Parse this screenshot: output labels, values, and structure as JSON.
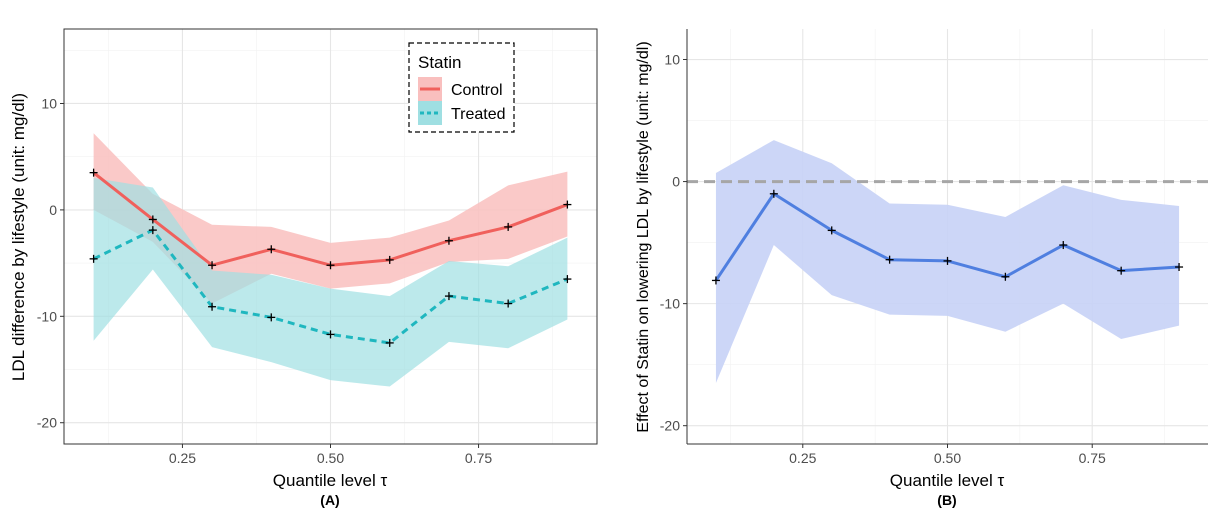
{
  "colors": {
    "control": "#F0605C",
    "control_band": "#F9BFBE",
    "treated": "#1FB7BF",
    "treated_band": "#9FDFE2",
    "effect": "#4F7FE0",
    "effect_band": "#C6D2F6",
    "zero_line": "#A6A6A6",
    "grid": "#E6E6E6",
    "axis": "#333333"
  },
  "chart_data": [
    {
      "panel_label": "(A)",
      "type": "line",
      "xlabel": "Quantile level τ",
      "ylabel": "LDL difference by lifestyle (unit:  mg/dl)",
      "xlim": [
        0.05,
        0.95
      ],
      "ylim": [
        -22,
        17
      ],
      "xticks": [
        0.25,
        0.5,
        0.75
      ],
      "xtick_labels": [
        "0.25",
        "0.50",
        "0.75"
      ],
      "yticks": [
        -20,
        -10,
        0,
        10
      ],
      "ytick_labels": [
        "-20",
        "-10",
        "0",
        "10"
      ],
      "grid": true,
      "x": [
        0.1,
        0.2,
        0.3,
        0.4,
        0.5,
        0.6,
        0.7,
        0.8,
        0.9
      ],
      "legend": {
        "title": "Statin",
        "placement": "top-right"
      },
      "series": [
        {
          "name": "Control",
          "style": "solid",
          "values": [
            3.5,
            -0.9,
            -5.2,
            -3.7,
            -5.2,
            -4.7,
            -2.9,
            -1.6,
            0.5
          ],
          "lower": [
            0.0,
            -3.0,
            -8.8,
            -6.0,
            -7.4,
            -6.9,
            -4.9,
            -4.6,
            -2.5
          ],
          "upper": [
            7.2,
            1.5,
            -1.4,
            -1.6,
            -3.1,
            -2.6,
            -1.0,
            2.3,
            3.6
          ]
        },
        {
          "name": "Treated",
          "style": "dashed",
          "values": [
            -4.6,
            -1.9,
            -9.1,
            -10.1,
            -11.7,
            -12.5,
            -8.1,
            -8.8,
            -6.5
          ],
          "lower": [
            -12.3,
            -5.6,
            -12.9,
            -14.3,
            -16.0,
            -16.6,
            -12.4,
            -13.0,
            -10.3
          ],
          "upper": [
            3.0,
            2.1,
            -5.7,
            -6.1,
            -7.4,
            -8.1,
            -4.8,
            -5.3,
            -2.6
          ]
        }
      ]
    },
    {
      "panel_label": "(B)",
      "type": "line",
      "xlabel": "Quantile level τ",
      "ylabel": "Effect of Statin on lowering LDL by lifestyle (unit: mg/dl)",
      "xlim": [
        0.05,
        0.95
      ],
      "ylim": [
        -21.5,
        12.5
      ],
      "xticks": [
        0.25,
        0.5,
        0.75
      ],
      "xtick_labels": [
        "0.25",
        "0.50",
        "0.75"
      ],
      "yticks": [
        -20,
        -10,
        0,
        10
      ],
      "ytick_labels": [
        "-20",
        "-10",
        "0",
        "10"
      ],
      "grid": true,
      "reference_line_y": 0,
      "x": [
        0.1,
        0.2,
        0.3,
        0.4,
        0.5,
        0.6,
        0.7,
        0.8,
        0.9
      ],
      "series": [
        {
          "values": [
            -8.1,
            -1.0,
            -4.0,
            -6.4,
            -6.5,
            -7.8,
            -5.2,
            -7.3,
            -7.0
          ],
          "lower": [
            -16.5,
            -5.2,
            -9.3,
            -10.9,
            -11.0,
            -12.3,
            -10.0,
            -12.9,
            -11.8
          ],
          "upper": [
            0.7,
            3.4,
            1.5,
            -1.8,
            -1.9,
            -2.9,
            -0.3,
            -1.5,
            -2.0
          ]
        }
      ]
    }
  ]
}
